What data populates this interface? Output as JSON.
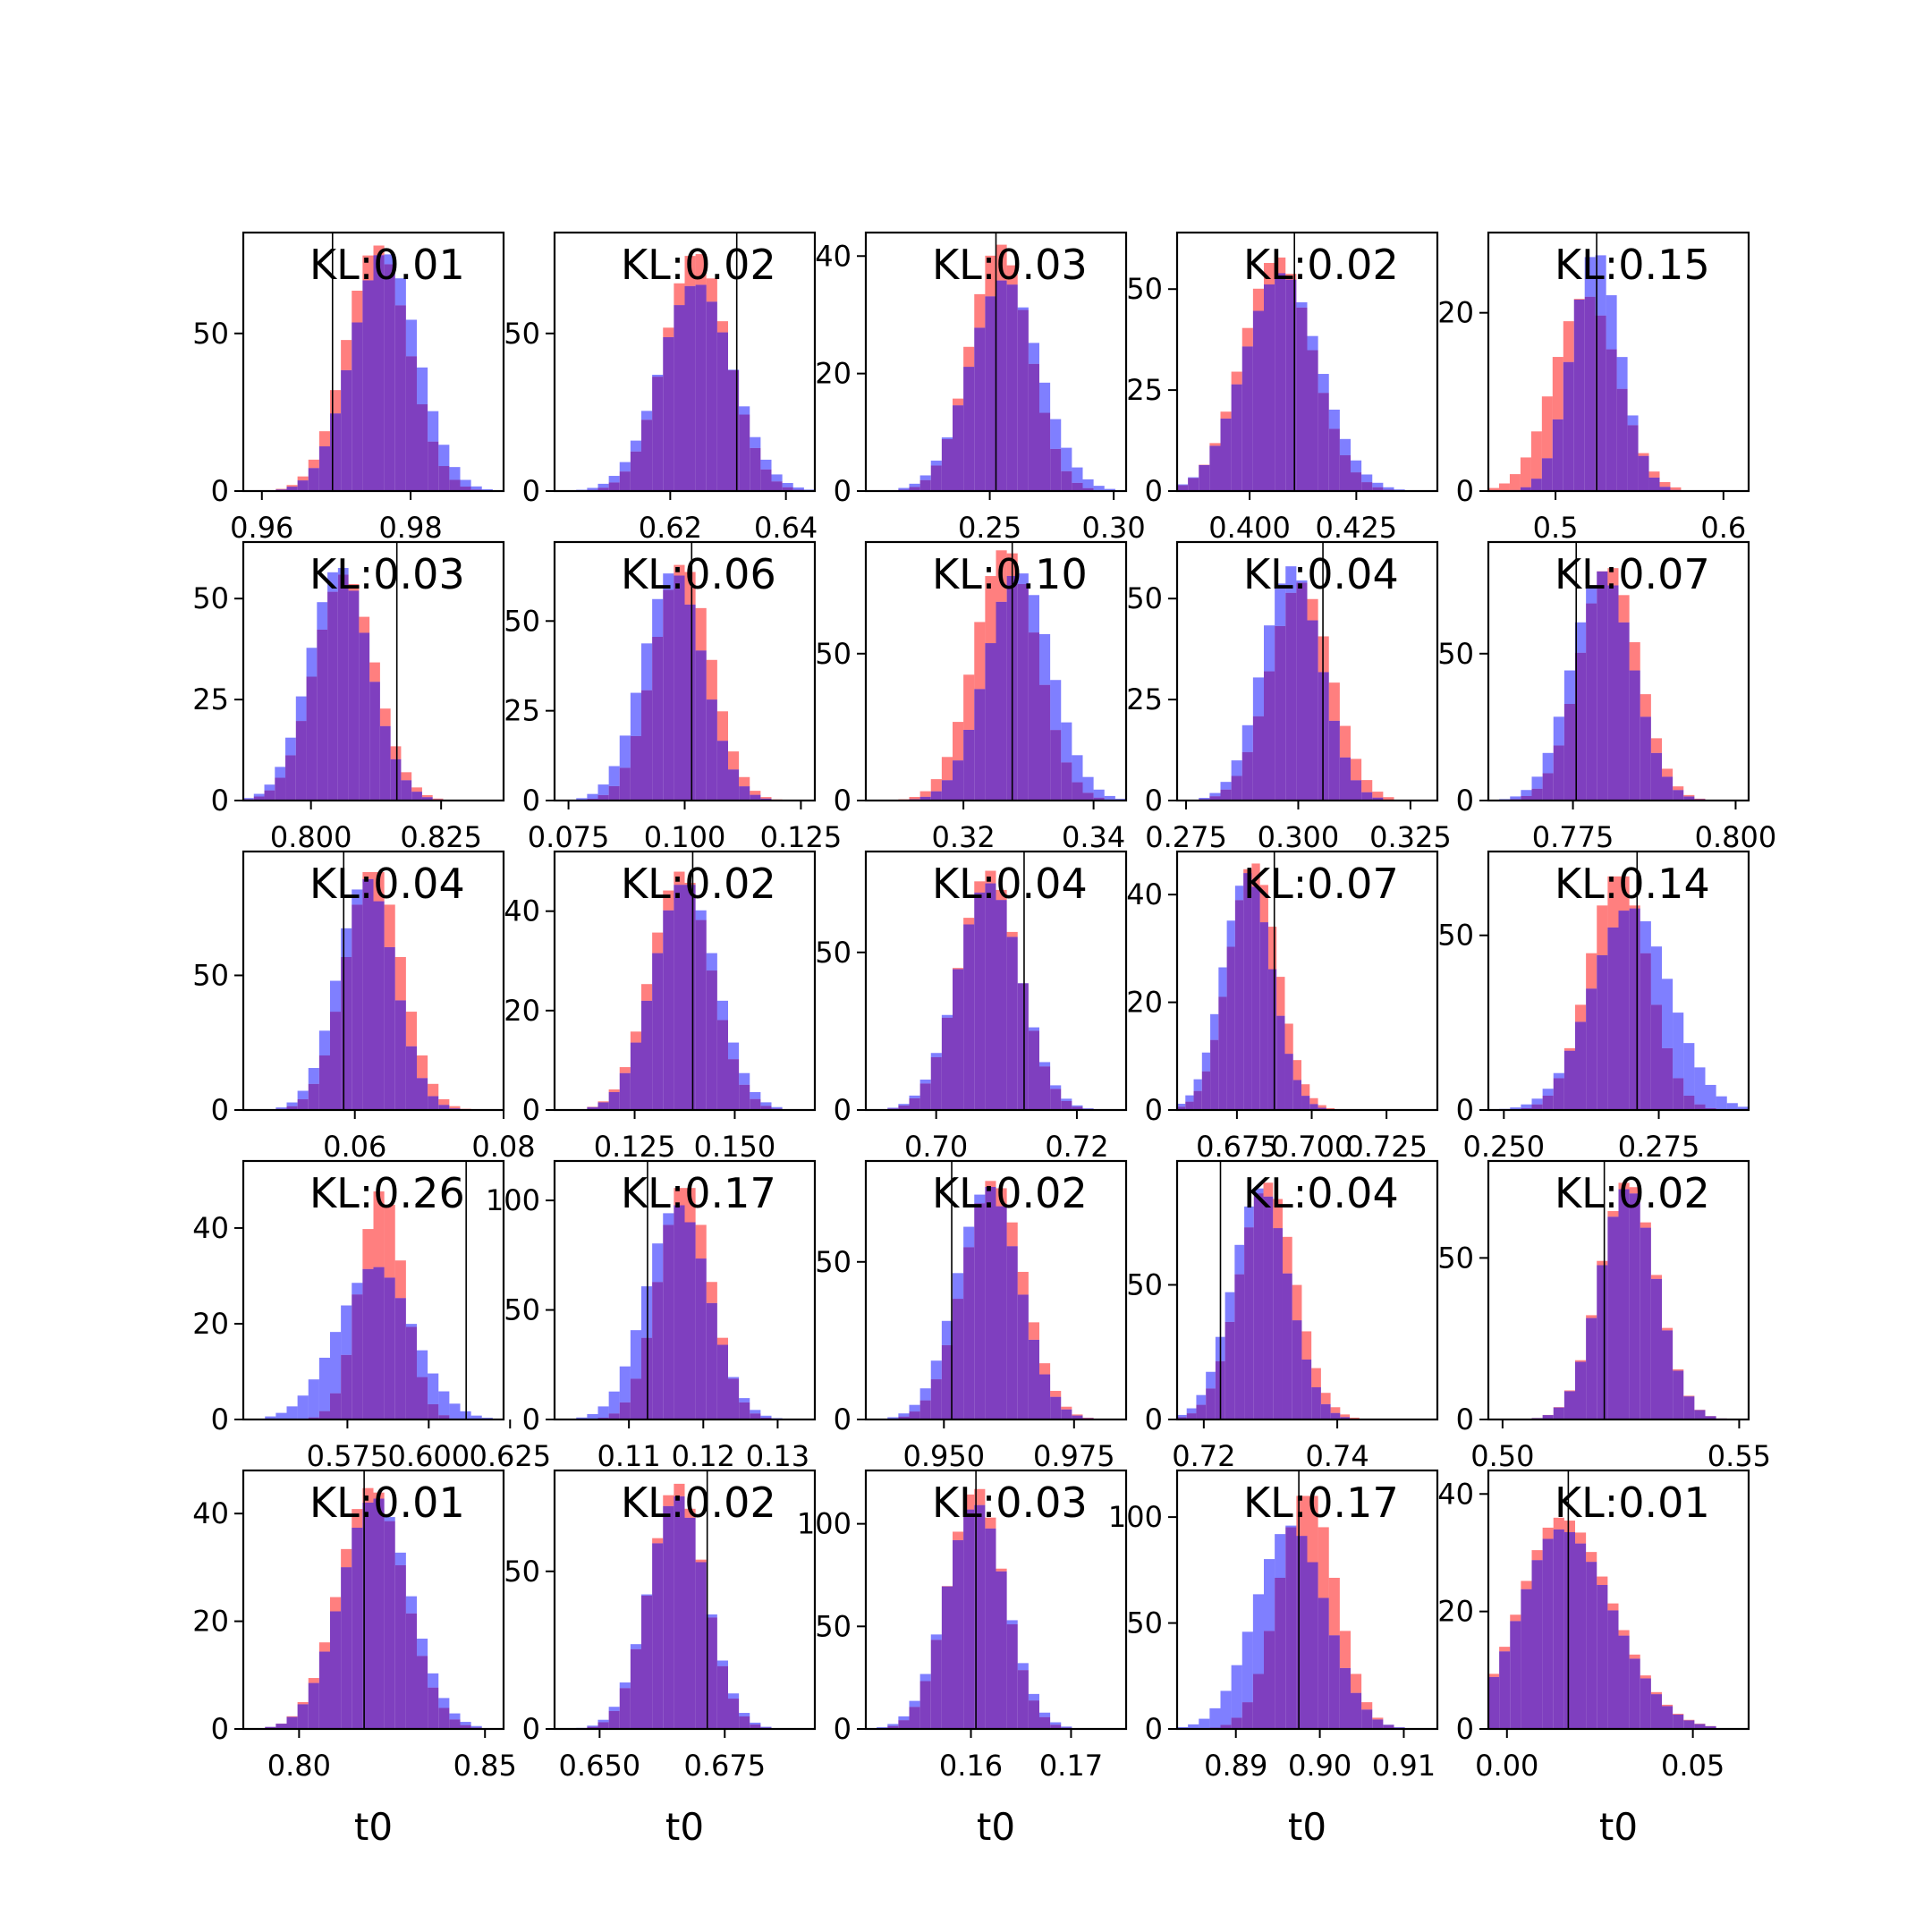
{
  "figure": {
    "xlabel": "t0",
    "colors": {
      "red": "#ff0000",
      "blue": "#0000ff",
      "overlap": "#7f3fbf"
    }
  },
  "chart_data": [
    {
      "type": "histogram",
      "kl_label": "KL:0.01",
      "xlabel": "",
      "xlim": [
        0.9575,
        0.9925
      ],
      "ylim": [
        0,
        82
      ],
      "xticks": [
        0.96,
        0.98
      ],
      "xtick_labels": [
        "0.96",
        "0.98"
      ],
      "yticks": [
        0,
        50
      ],
      "ytick_labels": [
        "0",
        "50"
      ],
      "ref_line": 0.9695,
      "red": {
        "center": 0.9755,
        "sd": 0.0042,
        "peak": 78
      },
      "blue": {
        "center": 0.9765,
        "sd": 0.0044,
        "peak": 76
      }
    },
    {
      "type": "histogram",
      "kl_label": "KL:0.02",
      "xlabel": "",
      "xlim": [
        0.6,
        0.645
      ],
      "ylim": [
        0,
        82
      ],
      "xticks": [
        0.62,
        0.64
      ],
      "xtick_labels": [
        "0.62",
        "0.64"
      ],
      "yticks": [
        0,
        50
      ],
      "ytick_labels": [
        "0",
        "50"
      ],
      "ref_line": 0.6315,
      "red": {
        "center": 0.6245,
        "sd": 0.0055,
        "peak": 76
      },
      "blue": {
        "center": 0.6245,
        "sd": 0.0062,
        "peak": 66
      }
    },
    {
      "type": "histogram",
      "kl_label": "KL:0.03",
      "xlabel": "",
      "xlim": [
        0.2,
        0.305
      ],
      "ylim": [
        0,
        44
      ],
      "xticks": [
        0.25,
        0.3
      ],
      "xtick_labels": [
        "0.25",
        "0.30"
      ],
      "yticks": [
        0,
        20,
        40
      ],
      "ytick_labels": [
        "0",
        "20",
        "40"
      ],
      "ref_line": 0.2525,
      "red": {
        "center": 0.254,
        "sd": 0.012,
        "peak": 42
      },
      "blue": {
        "center": 0.256,
        "sd": 0.014,
        "peak": 36
      }
    },
    {
      "type": "histogram",
      "kl_label": "KL:0.02",
      "xlabel": "",
      "xlim": [
        0.383,
        0.444
      ],
      "ylim": [
        0,
        64
      ],
      "xticks": [
        0.4,
        0.425
      ],
      "xtick_labels": [
        "0.400",
        "0.425"
      ],
      "yticks": [
        0,
        25,
        50
      ],
      "ytick_labels": [
        "0",
        "25",
        "50"
      ],
      "ref_line": 0.4105,
      "red": {
        "center": 0.4065,
        "sd": 0.0082,
        "peak": 58
      },
      "blue": {
        "center": 0.4075,
        "sd": 0.0088,
        "peak": 54
      }
    },
    {
      "type": "histogram",
      "kl_label": "KL:0.15",
      "xlabel": "",
      "xlim": [
        0.46,
        0.615
      ],
      "ylim": [
        0,
        29
      ],
      "xticks": [
        0.5,
        0.6
      ],
      "xtick_labels": [
        "0.5",
        "0.6"
      ],
      "yticks": [
        0,
        20
      ],
      "ytick_labels": [
        "0",
        "20"
      ],
      "ref_line": 0.5245,
      "red": {
        "center": 0.518,
        "sd": 0.019,
        "peak": 22
      },
      "blue": {
        "center": 0.524,
        "sd": 0.0145,
        "peak": 27
      }
    },
    {
      "type": "histogram",
      "kl_label": "KL:0.03",
      "xlabel": "",
      "xlim": [
        0.787,
        0.837
      ],
      "ylim": [
        0,
        64
      ],
      "xticks": [
        0.8,
        0.825
      ],
      "xtick_labels": [
        "0.800",
        "0.825"
      ],
      "yticks": [
        0,
        25,
        50
      ],
      "ytick_labels": [
        "0",
        "25",
        "50"
      ],
      "ref_line": 0.8165,
      "red": {
        "center": 0.8065,
        "sd": 0.0058,
        "peak": 56
      },
      "blue": {
        "center": 0.8055,
        "sd": 0.0058,
        "peak": 58
      }
    },
    {
      "type": "histogram",
      "kl_label": "KL:0.06",
      "xlabel": "",
      "xlim": [
        0.072,
        0.128
      ],
      "ylim": [
        0,
        72
      ],
      "xticks": [
        0.075,
        0.1,
        0.125
      ],
      "xtick_labels": [
        "0.075",
        "0.100",
        "0.125"
      ],
      "yticks": [
        0,
        25,
        50
      ],
      "ytick_labels": [
        "0",
        "25",
        "50"
      ],
      "ref_line": 0.1015,
      "red": {
        "center": 0.0995,
        "sd": 0.0062,
        "peak": 66
      },
      "blue": {
        "center": 0.0975,
        "sd": 0.0065,
        "peak": 64
      }
    },
    {
      "type": "histogram",
      "kl_label": "KL:0.10",
      "xlabel": "",
      "xlim": [
        0.305,
        0.345
      ],
      "ylim": [
        0,
        88
      ],
      "xticks": [
        0.32,
        0.34
      ],
      "xtick_labels": [
        "0.32",
        "0.34"
      ],
      "yticks": [
        0,
        50
      ],
      "ytick_labels": [
        "0",
        "50"
      ],
      "ref_line": 0.3275,
      "red": {
        "center": 0.3265,
        "sd": 0.0048,
        "peak": 86
      },
      "blue": {
        "center": 0.3285,
        "sd": 0.005,
        "peak": 78
      }
    },
    {
      "type": "histogram",
      "kl_label": "KL:0.04",
      "xlabel": "",
      "xlim": [
        0.273,
        0.331
      ],
      "ylim": [
        0,
        64
      ],
      "xticks": [
        0.275,
        0.3,
        0.325
      ],
      "xtick_labels": [
        "0.275",
        "0.300",
        "0.325"
      ],
      "yticks": [
        0,
        25,
        50
      ],
      "ytick_labels": [
        "0",
        "25",
        "50"
      ],
      "ref_line": 0.3055,
      "red": {
        "center": 0.3005,
        "sd": 0.0068,
        "peak": 54
      },
      "blue": {
        "center": 0.2985,
        "sd": 0.0065,
        "peak": 58
      }
    },
    {
      "type": "histogram",
      "kl_label": "KL:0.07",
      "xlabel": "",
      "xlim": [
        0.762,
        0.802
      ],
      "ylim": [
        0,
        88
      ],
      "xticks": [
        0.775,
        0.8
      ],
      "xtick_labels": [
        "0.775",
        "0.800"
      ],
      "yticks": [
        0,
        50
      ],
      "ytick_labels": [
        "0",
        "50"
      ],
      "ref_line": 0.7755,
      "red": {
        "center": 0.7805,
        "sd": 0.0045,
        "peak": 80
      },
      "blue": {
        "center": 0.7795,
        "sd": 0.0047,
        "peak": 78
      }
    },
    {
      "type": "histogram",
      "kl_label": "KL:0.04",
      "xlabel": "",
      "xlim": [
        0.045,
        0.08
      ],
      "ylim": [
        0,
        96
      ],
      "xticks": [
        0.06,
        0.08
      ],
      "xtick_labels": [
        "0.06",
        "0.08"
      ],
      "yticks": [
        0,
        50
      ],
      "ytick_labels": [
        "0",
        "50"
      ],
      "ref_line": 0.0585,
      "red": {
        "center": 0.0625,
        "sd": 0.0038,
        "peak": 90
      },
      "blue": {
        "center": 0.0615,
        "sd": 0.0038,
        "peak": 86
      }
    },
    {
      "type": "histogram",
      "kl_label": "KL:0.02",
      "xlabel": "",
      "xlim": [
        0.105,
        0.17
      ],
      "ylim": [
        0,
        52
      ],
      "xticks": [
        0.125,
        0.15
      ],
      "xtick_labels": [
        "0.125",
        "0.150"
      ],
      "yticks": [
        0,
        20,
        40
      ],
      "ytick_labels": [
        "0",
        "20",
        "40"
      ],
      "ref_line": 0.1395,
      "red": {
        "center": 0.1365,
        "sd": 0.0075,
        "peak": 48
      },
      "blue": {
        "center": 0.1375,
        "sd": 0.0078,
        "peak": 46
      }
    },
    {
      "type": "histogram",
      "kl_label": "KL:0.04",
      "xlabel": "",
      "xlim": [
        0.69,
        0.727
      ],
      "ylim": [
        0,
        82
      ],
      "xticks": [
        0.7,
        0.72
      ],
      "xtick_labels": [
        "0.70",
        "0.72"
      ],
      "yticks": [
        0,
        50
      ],
      "ytick_labels": [
        "0",
        "50"
      ],
      "ref_line": 0.7125,
      "red": {
        "center": 0.7075,
        "sd": 0.0043,
        "peak": 76
      },
      "blue": {
        "center": 0.7075,
        "sd": 0.0045,
        "peak": 72
      }
    },
    {
      "type": "histogram",
      "kl_label": "KL:0.07",
      "xlabel": "",
      "xlim": [
        0.655,
        0.742
      ],
      "ylim": [
        0,
        48
      ],
      "xticks": [
        0.675,
        0.7,
        0.725
      ],
      "xtick_labels": [
        "0.675",
        "0.700",
        "0.725"
      ],
      "yticks": [
        0,
        20,
        40
      ],
      "ytick_labels": [
        "0",
        "20",
        "40"
      ],
      "ref_line": 0.6875,
      "red": {
        "center": 0.6805,
        "sd": 0.0082,
        "peak": 46
      },
      "blue": {
        "center": 0.6785,
        "sd": 0.0082,
        "peak": 44
      }
    },
    {
      "type": "histogram",
      "kl_label": "KL:0.14",
      "xlabel": "",
      "xlim": [
        0.2475,
        0.2895
      ],
      "ylim": [
        0,
        74
      ],
      "xticks": [
        0.25,
        0.275
      ],
      "xtick_labels": [
        "0.250",
        "0.275"
      ],
      "yticks": [
        0,
        50
      ],
      "ytick_labels": [
        "0",
        "50"
      ],
      "ref_line": 0.2715,
      "red": {
        "center": 0.2685,
        "sd": 0.0048,
        "peak": 68
      },
      "blue": {
        "center": 0.2705,
        "sd": 0.0063,
        "peak": 58
      }
    },
    {
      "type": "histogram",
      "kl_label": "KL:0.26",
      "xlabel": "",
      "xlim": [
        0.543,
        0.623
      ],
      "ylim": [
        0,
        54
      ],
      "xticks": [
        0.575,
        0.6,
        0.625
      ],
      "xtick_labels": [
        "0.575",
        "0.600",
        "0.625"
      ],
      "yticks": [
        0,
        20,
        40
      ],
      "ytick_labels": [
        "0",
        "20",
        "40"
      ],
      "ref_line": 0.6115,
      "red": {
        "center": 0.5855,
        "sd": 0.0068,
        "peak": 48
      },
      "blue": {
        "center": 0.5835,
        "sd": 0.0115,
        "peak": 32
      }
    },
    {
      "type": "histogram",
      "kl_label": "KL:0.17",
      "xlabel": "",
      "xlim": [
        0.1,
        0.135
      ],
      "ylim": [
        0,
        118
      ],
      "xticks": [
        0.11,
        0.12,
        0.13
      ],
      "xtick_labels": [
        "0.11",
        "0.12",
        "0.13"
      ],
      "yticks": [
        0,
        50,
        100
      ],
      "ytick_labels": [
        "0",
        "50",
        "100"
      ],
      "ref_line": 0.1125,
      "red": {
        "center": 0.1175,
        "sd": 0.0035,
        "peak": 108
      },
      "blue": {
        "center": 0.1165,
        "sd": 0.0042,
        "peak": 98
      }
    },
    {
      "type": "histogram",
      "kl_label": "KL:0.02",
      "xlabel": "",
      "xlim": [
        0.935,
        0.985
      ],
      "ylim": [
        0,
        82
      ],
      "xticks": [
        0.95,
        0.975
      ],
      "xtick_labels": [
        "0.950",
        "0.975"
      ],
      "yticks": [
        0,
        50
      ],
      "ytick_labels": [
        "0",
        "50"
      ],
      "ref_line": 0.9515,
      "red": {
        "center": 0.9595,
        "sd": 0.0058,
        "peak": 76
      },
      "blue": {
        "center": 0.9585,
        "sd": 0.006,
        "peak": 74
      }
    },
    {
      "type": "histogram",
      "kl_label": "KL:0.04",
      "xlabel": "",
      "xlim": [
        0.716,
        0.755
      ],
      "ylim": [
        0,
        96
      ],
      "xticks": [
        0.72,
        0.74
      ],
      "xtick_labels": [
        "0.72",
        "0.74"
      ],
      "yticks": [
        0,
        50
      ],
      "ytick_labels": [
        "0",
        "50"
      ],
      "ref_line": 0.7225,
      "red": {
        "center": 0.7295,
        "sd": 0.0042,
        "peak": 88
      },
      "blue": {
        "center": 0.7285,
        "sd": 0.0042,
        "peak": 86
      }
    },
    {
      "type": "histogram",
      "kl_label": "KL:0.02",
      "xlabel": "",
      "xlim": [
        0.497,
        0.552
      ],
      "ylim": [
        0,
        80
      ],
      "xticks": [
        0.5,
        0.55
      ],
      "xtick_labels": [
        "0.50",
        "0.55"
      ],
      "yticks": [
        0,
        50
      ],
      "ytick_labels": [
        "0",
        "50"
      ],
      "ref_line": 0.5215,
      "red": {
        "center": 0.5265,
        "sd": 0.006,
        "peak": 74
      },
      "blue": {
        "center": 0.5265,
        "sd": 0.006,
        "peak": 72
      }
    },
    {
      "type": "histogram",
      "kl_label": "KL:0.01",
      "xlabel": "t0",
      "xlim": [
        0.785,
        0.855
      ],
      "ylim": [
        0,
        48
      ],
      "xticks": [
        0.8,
        0.85
      ],
      "xtick_labels": [
        "0.80",
        "0.85"
      ],
      "yticks": [
        0,
        20,
        40
      ],
      "ytick_labels": [
        "0",
        "20",
        "40"
      ],
      "ref_line": 0.8175,
      "red": {
        "center": 0.8195,
        "sd": 0.0088,
        "peak": 45
      },
      "blue": {
        "center": 0.8205,
        "sd": 0.0092,
        "peak": 43
      }
    },
    {
      "type": "histogram",
      "kl_label": "KL:0.02",
      "xlabel": "t0",
      "xlim": [
        0.641,
        0.693
      ],
      "ylim": [
        0,
        82
      ],
      "xticks": [
        0.65,
        0.675
      ],
      "xtick_labels": [
        "0.650",
        "0.675"
      ],
      "yticks": [
        0,
        50
      ],
      "ytick_labels": [
        "0",
        "50"
      ],
      "ref_line": 0.6715,
      "red": {
        "center": 0.6655,
        "sd": 0.0055,
        "peak": 78
      },
      "blue": {
        "center": 0.6655,
        "sd": 0.0058,
        "peak": 74
      }
    },
    {
      "type": "histogram",
      "kl_label": "KL:0.03",
      "xlabel": "t0",
      "xlim": [
        0.1495,
        0.1755
      ],
      "ylim": [
        0,
        126
      ],
      "xticks": [
        0.16,
        0.17
      ],
      "xtick_labels": [
        "0.16",
        "0.17"
      ],
      "yticks": [
        0,
        50,
        100
      ],
      "ytick_labels": [
        "0",
        "50",
        "100"
      ],
      "ref_line": 0.1605,
      "red": {
        "center": 0.1605,
        "sd": 0.0028,
        "peak": 118
      },
      "blue": {
        "center": 0.1605,
        "sd": 0.003,
        "peak": 110
      }
    },
    {
      "type": "histogram",
      "kl_label": "KL:0.17",
      "xlabel": "t0",
      "xlim": [
        0.883,
        0.914
      ],
      "ylim": [
        0,
        122
      ],
      "xticks": [
        0.89,
        0.9,
        0.91
      ],
      "xtick_labels": [
        "0.89",
        "0.90",
        "0.91"
      ],
      "yticks": [
        0,
        50,
        100
      ],
      "ytick_labels": [
        "0",
        "50",
        "100"
      ],
      "ref_line": 0.8975,
      "red": {
        "center": 0.8985,
        "sd": 0.0034,
        "peak": 112
      },
      "blue": {
        "center": 0.8965,
        "sd": 0.0042,
        "peak": 96
      }
    },
    {
      "type": "histogram",
      "kl_label": "KL:0.01",
      "xlabel": "t0",
      "xlim": [
        -0.005,
        0.065
      ],
      "ylim": [
        0,
        44
      ],
      "xticks": [
        0.0,
        0.05
      ],
      "xtick_labels": [
        "0.00",
        "0.05"
      ],
      "yticks": [
        0,
        20,
        40
      ],
      "ytick_labels": [
        "0",
        "20",
        "40"
      ],
      "ref_line": 0.0165,
      "red": {
        "center": 0.0145,
        "sd": 0.011,
        "peak": 36,
        "skew": true
      },
      "blue": {
        "center": 0.0145,
        "sd": 0.011,
        "peak": 34,
        "skew": true
      }
    }
  ]
}
